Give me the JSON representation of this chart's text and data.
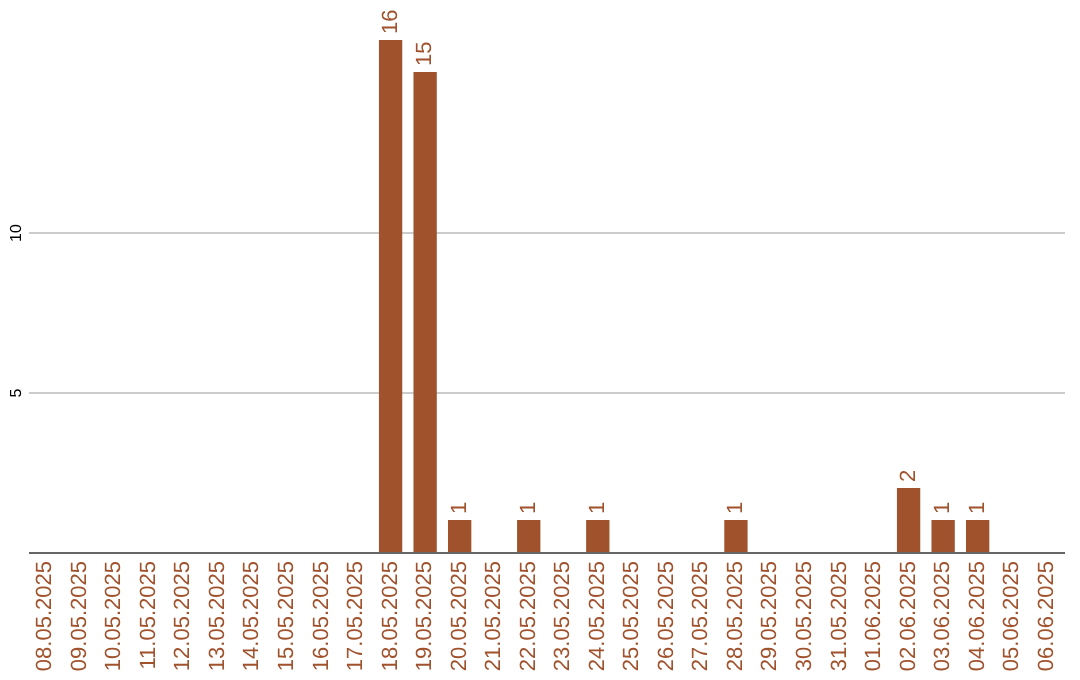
{
  "chart_data": {
    "type": "bar",
    "categories": [
      "08.05.2025",
      "09.05.2025",
      "10.05.2025",
      "11.05.2025",
      "12.05.2025",
      "13.05.2025",
      "14.05.2025",
      "15.05.2025",
      "16.05.2025",
      "17.05.2025",
      "18.05.2025",
      "19.05.2025",
      "20.05.2025",
      "21.05.2025",
      "22.05.2025",
      "23.05.2025",
      "24.05.2025",
      "25.05.2025",
      "26.05.2025",
      "27.05.2025",
      "28.05.2025",
      "29.05.2025",
      "30.05.2025",
      "31.05.2025",
      "01.06.2025",
      "02.06.2025",
      "03.06.2025",
      "04.06.2025",
      "05.06.2025",
      "06.06.2025"
    ],
    "values": [
      0,
      0,
      0,
      0,
      0,
      0,
      0,
      0,
      0,
      0,
      16,
      15,
      1,
      0,
      1,
      0,
      1,
      0,
      0,
      0,
      1,
      0,
      0,
      0,
      0,
      2,
      1,
      1,
      0,
      0
    ],
    "value_labels": [
      null,
      null,
      null,
      null,
      null,
      null,
      null,
      null,
      null,
      null,
      "16",
      "15",
      "1",
      null,
      "1",
      null,
      "1",
      null,
      null,
      null,
      "1",
      null,
      null,
      null,
      null,
      "2",
      "1",
      "1",
      null,
      null
    ],
    "color": "#a0522d",
    "ylim": [
      0,
      16
    ],
    "yticks": [
      5,
      10
    ],
    "grid": "y"
  }
}
